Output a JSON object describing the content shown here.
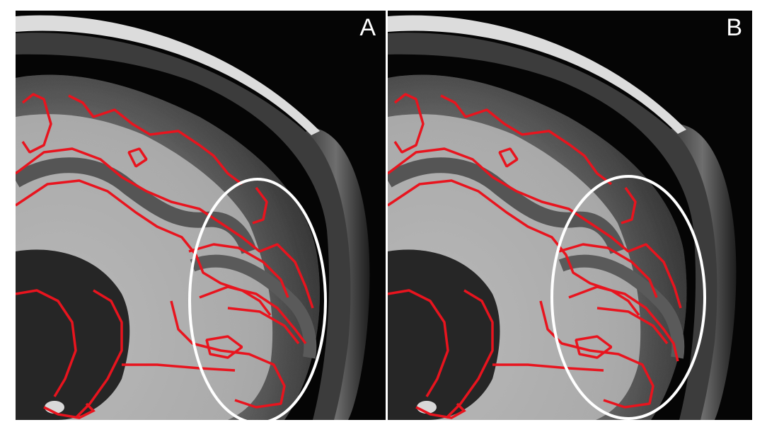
{
  "panels": [
    {
      "id": "A",
      "label": "A"
    },
    {
      "id": "B",
      "label": "B"
    }
  ],
  "colors": {
    "background": "#000000",
    "tissue_light": "#c2c2c2",
    "tissue_dark": "#555555",
    "skull_band": "#dcdcdc",
    "contour": "#e8141e",
    "highlight_ellipse": "#ffffff",
    "figure_border": "#ffffff"
  }
}
